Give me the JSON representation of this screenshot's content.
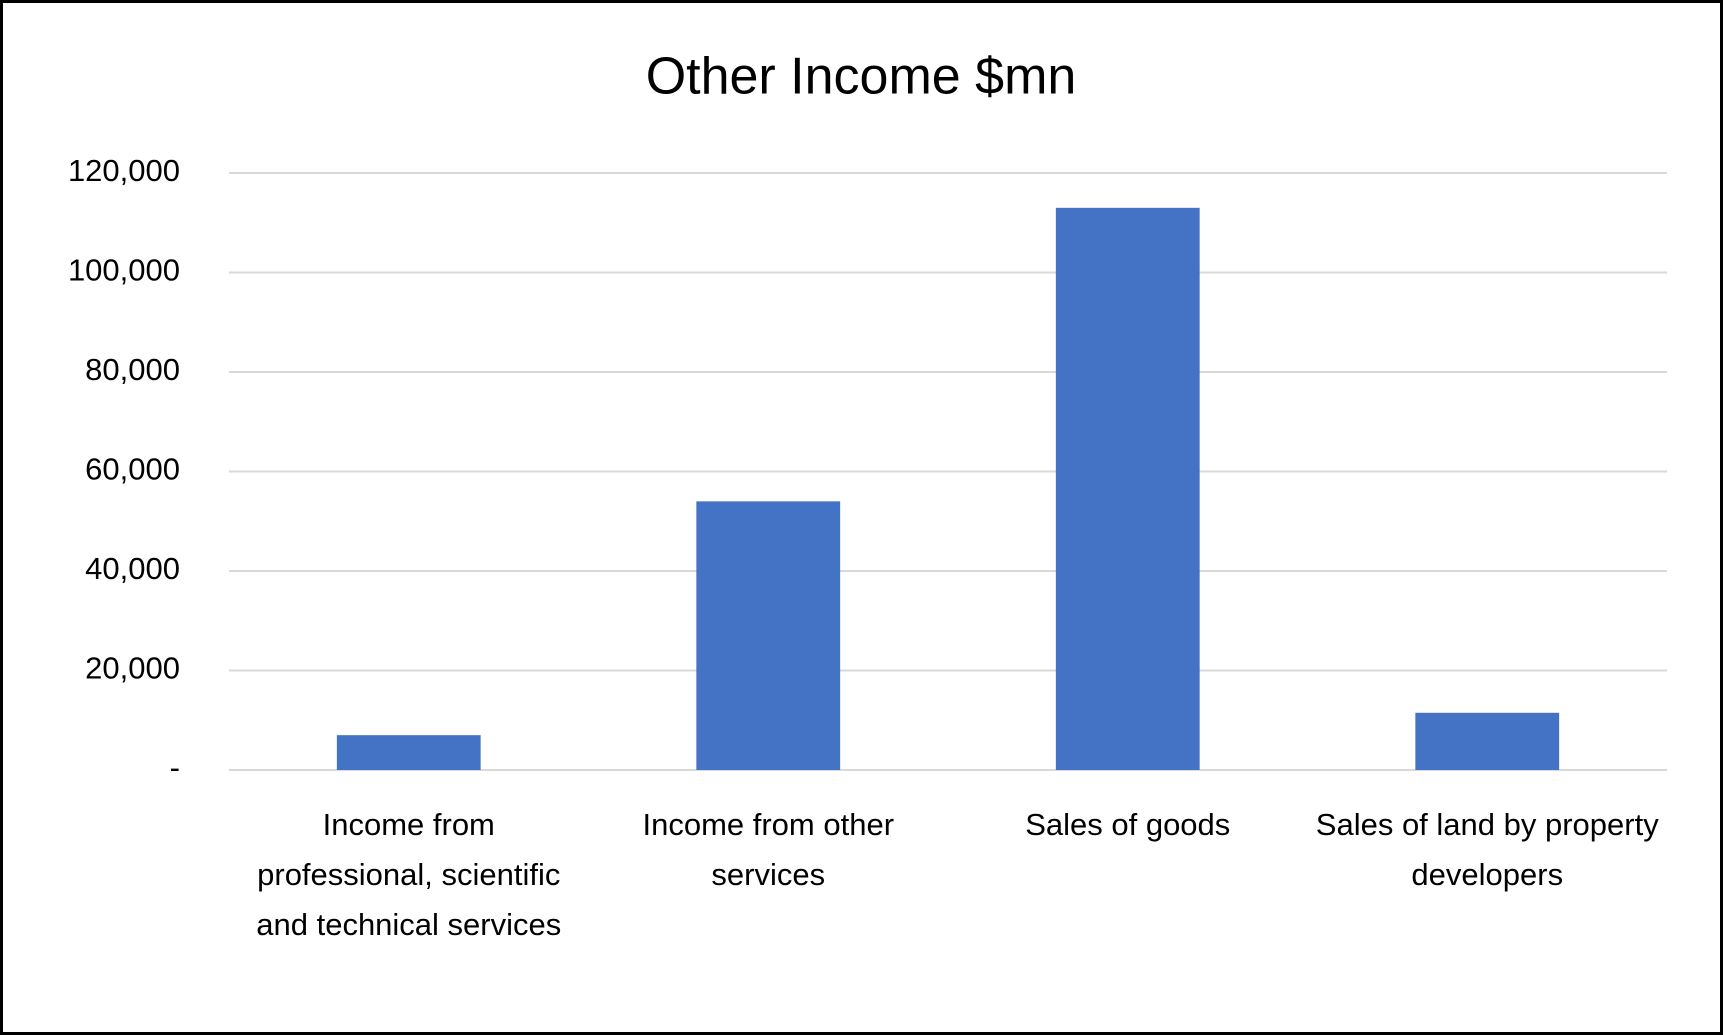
{
  "chart_data": {
    "type": "bar",
    "title": "Other Income $mn",
    "categories": [
      "Income from professional, scientific and technical services",
      "Income from other services",
      "Sales of goods",
      "Sales of land by property developers"
    ],
    "values": [
      7000,
      54000,
      113000,
      11500
    ],
    "color": "#4472c4",
    "ylim": [
      0,
      120000
    ],
    "yticks": [
      {
        "value": 0,
        "label": "-"
      },
      {
        "value": 20000,
        "label": "20,000"
      },
      {
        "value": 40000,
        "label": "40,000"
      },
      {
        "value": 60000,
        "label": "60,000"
      },
      {
        "value": 80000,
        "label": "80,000"
      },
      {
        "value": 100000,
        "label": "100,000"
      },
      {
        "value": 120000,
        "label": "120,000"
      }
    ],
    "grid": true
  }
}
